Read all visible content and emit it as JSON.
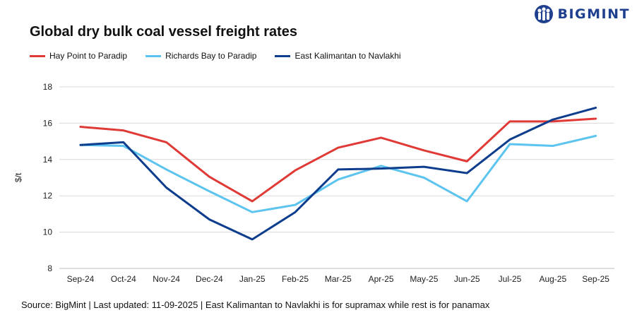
{
  "brand": {
    "name": "BIGMINT",
    "color": "#1f3f8f"
  },
  "chart_data": {
    "type": "line",
    "title": "Global dry bulk coal vessel freight rates",
    "xlabel": "",
    "ylabel": "$/t",
    "ylim": [
      8,
      18
    ],
    "yticks": [
      8,
      10,
      12,
      14,
      16,
      18
    ],
    "grid": true,
    "legend_position": "top-left",
    "categories": [
      "Sep-24",
      "Oct-24",
      "Nov-24",
      "Dec-24",
      "Jan-25",
      "Feb-25",
      "Mar-25",
      "Apr-25",
      "May-25",
      "Jun-25",
      "Jul-25",
      "Aug-25",
      "Sep-25"
    ],
    "series": [
      {
        "name": "Hay Point to Paradip",
        "color": "#e03a36",
        "values": [
          15.8,
          15.6,
          14.95,
          13.05,
          11.7,
          13.4,
          14.65,
          15.2,
          14.5,
          13.9,
          16.1,
          16.1,
          16.25
        ]
      },
      {
        "name": "Richards Bay to Paradip",
        "color": "#5cc4ef",
        "values": [
          14.8,
          14.75,
          13.45,
          12.25,
          11.1,
          11.5,
          12.9,
          13.65,
          13.0,
          11.7,
          14.85,
          14.75,
          15.3
        ]
      },
      {
        "name": "East Kalimantan to Navlakhi",
        "color": "#0d3d8c",
        "values": [
          14.8,
          14.95,
          12.45,
          10.7,
          9.6,
          11.1,
          13.45,
          13.5,
          13.6,
          13.25,
          15.1,
          16.2,
          16.85
        ]
      }
    ]
  },
  "footer": {
    "source": "Source: BigMint | Last updated: 11-09-2025 | East Kalimantan to Navlakhi is for supramax while rest is for panamax"
  }
}
